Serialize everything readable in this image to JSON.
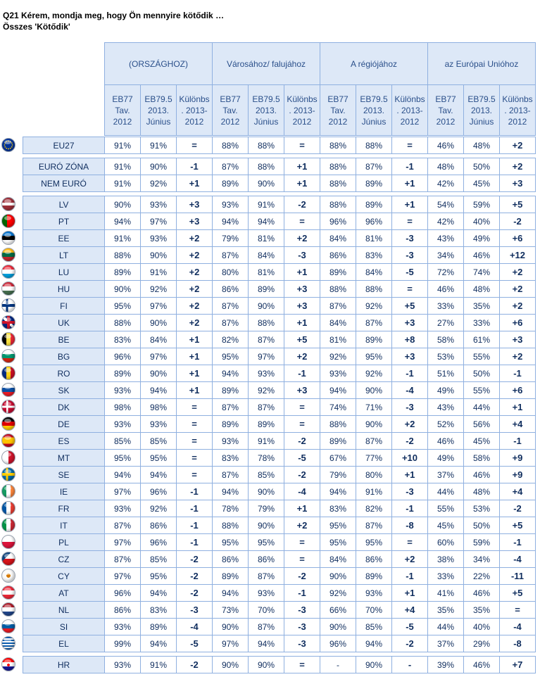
{
  "title": {
    "line1": "Q21 Kérem, mondja meg, hogy Ön mennyire kötődik …",
    "line2": "Összes 'Kötődik'"
  },
  "chart_data": {
    "type": "table",
    "groups": [
      "(ORSZÁGHOZ)",
      "Városához/ falujához",
      "A régiójához",
      "az Európai Unióhoz"
    ],
    "subcolumns": [
      "EB77\nTav.\n2012",
      "EB79.5\n2013.\nJúnius",
      "Különbs\n. 2013-\n2012"
    ],
    "sections": [
      {
        "rows": [
          {
            "label": "EU27",
            "flag": "eu",
            "values": [
              "91%",
              "91%",
              "=",
              "88%",
              "88%",
              "=",
              "88%",
              "88%",
              "=",
              "46%",
              "48%",
              "+2"
            ]
          }
        ]
      },
      {
        "rows": [
          {
            "label": "EURÓ ZÓNA",
            "flag": "",
            "values": [
              "91%",
              "90%",
              "-1",
              "87%",
              "88%",
              "+1",
              "88%",
              "87%",
              "-1",
              "48%",
              "50%",
              "+2"
            ]
          },
          {
            "label": "NEM EURÓ",
            "flag": "",
            "values": [
              "91%",
              "92%",
              "+1",
              "89%",
              "90%",
              "+1",
              "88%",
              "89%",
              "+1",
              "42%",
              "45%",
              "+3"
            ]
          }
        ]
      },
      {
        "rows": [
          {
            "label": "LV",
            "flag": "lv",
            "values": [
              "90%",
              "93%",
              "+3",
              "93%",
              "91%",
              "-2",
              "88%",
              "89%",
              "+1",
              "54%",
              "59%",
              "+5"
            ]
          },
          {
            "label": "PT",
            "flag": "pt",
            "values": [
              "94%",
              "97%",
              "+3",
              "94%",
              "94%",
              "=",
              "96%",
              "96%",
              "=",
              "42%",
              "40%",
              "-2"
            ]
          },
          {
            "label": "EE",
            "flag": "ee",
            "values": [
              "91%",
              "93%",
              "+2",
              "79%",
              "81%",
              "+2",
              "84%",
              "81%",
              "-3",
              "43%",
              "49%",
              "+6"
            ]
          },
          {
            "label": "LT",
            "flag": "lt",
            "values": [
              "88%",
              "90%",
              "+2",
              "87%",
              "84%",
              "-3",
              "86%",
              "83%",
              "-3",
              "34%",
              "46%",
              "+12"
            ]
          },
          {
            "label": "LU",
            "flag": "lu",
            "values": [
              "89%",
              "91%",
              "+2",
              "80%",
              "81%",
              "+1",
              "89%",
              "84%",
              "-5",
              "72%",
              "74%",
              "+2"
            ]
          },
          {
            "label": "HU",
            "flag": "hu",
            "values": [
              "90%",
              "92%",
              "+2",
              "86%",
              "89%",
              "+3",
              "88%",
              "88%",
              "=",
              "46%",
              "48%",
              "+2"
            ]
          },
          {
            "label": "FI",
            "flag": "fi",
            "values": [
              "95%",
              "97%",
              "+2",
              "87%",
              "90%",
              "+3",
              "87%",
              "92%",
              "+5",
              "33%",
              "35%",
              "+2"
            ]
          },
          {
            "label": "UK",
            "flag": "uk",
            "values": [
              "88%",
              "90%",
              "+2",
              "87%",
              "88%",
              "+1",
              "84%",
              "87%",
              "+3",
              "27%",
              "33%",
              "+6"
            ]
          },
          {
            "label": "BE",
            "flag": "be",
            "values": [
              "83%",
              "84%",
              "+1",
              "82%",
              "87%",
              "+5",
              "81%",
              "89%",
              "+8",
              "58%",
              "61%",
              "+3"
            ]
          },
          {
            "label": "BG",
            "flag": "bg",
            "values": [
              "96%",
              "97%",
              "+1",
              "95%",
              "97%",
              "+2",
              "92%",
              "95%",
              "+3",
              "53%",
              "55%",
              "+2"
            ]
          },
          {
            "label": "RO",
            "flag": "ro",
            "values": [
              "89%",
              "90%",
              "+1",
              "94%",
              "93%",
              "-1",
              "93%",
              "92%",
              "-1",
              "51%",
              "50%",
              "-1"
            ]
          },
          {
            "label": "SK",
            "flag": "sk",
            "values": [
              "93%",
              "94%",
              "+1",
              "89%",
              "92%",
              "+3",
              "94%",
              "90%",
              "-4",
              "49%",
              "55%",
              "+6"
            ]
          },
          {
            "label": "DK",
            "flag": "dk",
            "values": [
              "98%",
              "98%",
              "=",
              "87%",
              "87%",
              "=",
              "74%",
              "71%",
              "-3",
              "43%",
              "44%",
              "+1"
            ]
          },
          {
            "label": "DE",
            "flag": "de",
            "values": [
              "93%",
              "93%",
              "=",
              "89%",
              "89%",
              "=",
              "88%",
              "90%",
              "+2",
              "52%",
              "56%",
              "+4"
            ]
          },
          {
            "label": "ES",
            "flag": "es",
            "values": [
              "85%",
              "85%",
              "=",
              "93%",
              "91%",
              "-2",
              "89%",
              "87%",
              "-2",
              "46%",
              "45%",
              "-1"
            ]
          },
          {
            "label": "MT",
            "flag": "mt",
            "values": [
              "95%",
              "95%",
              "=",
              "83%",
              "78%",
              "-5",
              "67%",
              "77%",
              "+10",
              "49%",
              "58%",
              "+9"
            ]
          },
          {
            "label": "SE",
            "flag": "se",
            "values": [
              "94%",
              "94%",
              "=",
              "87%",
              "85%",
              "-2",
              "79%",
              "80%",
              "+1",
              "37%",
              "46%",
              "+9"
            ]
          },
          {
            "label": "IE",
            "flag": "ie",
            "values": [
              "97%",
              "96%",
              "-1",
              "94%",
              "90%",
              "-4",
              "94%",
              "91%",
              "-3",
              "44%",
              "48%",
              "+4"
            ]
          },
          {
            "label": "FR",
            "flag": "fr",
            "values": [
              "93%",
              "92%",
              "-1",
              "78%",
              "79%",
              "+1",
              "83%",
              "82%",
              "-1",
              "55%",
              "53%",
              "-2"
            ]
          },
          {
            "label": "IT",
            "flag": "it",
            "values": [
              "87%",
              "86%",
              "-1",
              "88%",
              "90%",
              "+2",
              "95%",
              "87%",
              "-8",
              "45%",
              "50%",
              "+5"
            ]
          },
          {
            "label": "PL",
            "flag": "pl",
            "values": [
              "97%",
              "96%",
              "-1",
              "95%",
              "95%",
              "=",
              "95%",
              "95%",
              "=",
              "60%",
              "59%",
              "-1"
            ]
          },
          {
            "label": "CZ",
            "flag": "cz",
            "values": [
              "87%",
              "85%",
              "-2",
              "86%",
              "86%",
              "=",
              "84%",
              "86%",
              "+2",
              "38%",
              "34%",
              "-4"
            ]
          },
          {
            "label": "CY",
            "flag": "cy",
            "values": [
              "97%",
              "95%",
              "-2",
              "89%",
              "87%",
              "-2",
              "90%",
              "89%",
              "-1",
              "33%",
              "22%",
              "-11"
            ]
          },
          {
            "label": "AT",
            "flag": "at",
            "values": [
              "96%",
              "94%",
              "-2",
              "94%",
              "93%",
              "-1",
              "92%",
              "93%",
              "+1",
              "41%",
              "46%",
              "+5"
            ]
          },
          {
            "label": "NL",
            "flag": "nl",
            "values": [
              "86%",
              "83%",
              "-3",
              "73%",
              "70%",
              "-3",
              "66%",
              "70%",
              "+4",
              "35%",
              "35%",
              "="
            ]
          },
          {
            "label": "SI",
            "flag": "si",
            "values": [
              "93%",
              "89%",
              "-4",
              "90%",
              "87%",
              "-3",
              "90%",
              "85%",
              "-5",
              "44%",
              "40%",
              "-4"
            ]
          },
          {
            "label": "EL",
            "flag": "el",
            "values": [
              "99%",
              "94%",
              "-5",
              "97%",
              "94%",
              "-3",
              "96%",
              "94%",
              "-2",
              "37%",
              "29%",
              "-8"
            ]
          }
        ]
      },
      {
        "rows": [
          {
            "label": "HR",
            "flag": "hr",
            "values": [
              "93%",
              "91%",
              "-2",
              "90%",
              "90%",
              "=",
              "-",
              "90%",
              "-",
              "39%",
              "46%",
              "+7"
            ]
          }
        ]
      }
    ]
  }
}
